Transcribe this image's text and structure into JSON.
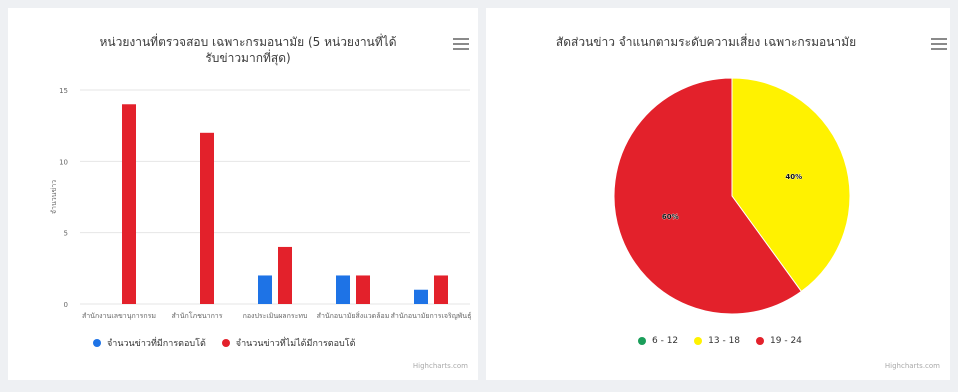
{
  "left_chart": {
    "title": "หน่วยงานที่ตรวจสอบ เฉพาะกรมอนามัย (5 หน่วยงานที่ได้รับข่าวมากที่สุด)",
    "credits": "Highcharts.com",
    "menu_icon": "hamburger-menu-icon"
  },
  "right_chart": {
    "title": "สัดส่วนข่าว จำแนกตามระดับความเสี่ยง เฉพาะกรมอนามัย",
    "credits": "Highcharts.com",
    "menu_icon": "hamburger-menu-icon"
  },
  "chart_data": [
    {
      "type": "bar",
      "title": "หน่วยงานที่ตรวจสอบ เฉพาะกรมอนามัย (5 หน่วยงานที่ได้รับข่าวมากที่สุด)",
      "ylabel": "จำนวนข่าว",
      "xlabel": "",
      "ylim": [
        0,
        15
      ],
      "yticks": [
        "0",
        "5",
        "10",
        "15"
      ],
      "categories": [
        "สำนักงานเลขานุการกรม",
        "สำนักโภชนาการ",
        "กองประเมินผลกระทบ",
        "สำนักอนามัยสิ่งแวดล้อม",
        "สำนักอนามัยการเจริญพันธุ์"
      ],
      "series": [
        {
          "name": "จำนวนข่าวที่มีการตอบโต้",
          "color": "#1e73e6",
          "values": [
            0,
            0,
            2,
            2,
            1
          ]
        },
        {
          "name": "จำนวนข่าวที่ไม่ได้มีการตอบโต้",
          "color": "#e3212b",
          "values": [
            14,
            12,
            4,
            2,
            2
          ]
        }
      ],
      "legend": "bottom",
      "grid": true
    },
    {
      "type": "pie",
      "title": "สัดส่วนข่าว จำแนกตามระดับความเสี่ยง เฉพาะกรมอนามัย",
      "slices": [
        {
          "label": "6 - 12",
          "value": 0,
          "color": "#1a9e5a",
          "data_label": "0%"
        },
        {
          "label": "13 - 18",
          "value": 40,
          "color": "#fff200",
          "data_label": "40%"
        },
        {
          "label": "19 - 24",
          "value": 60,
          "color": "#e3212b",
          "data_label": "60%"
        }
      ],
      "legend": "bottom"
    }
  ]
}
